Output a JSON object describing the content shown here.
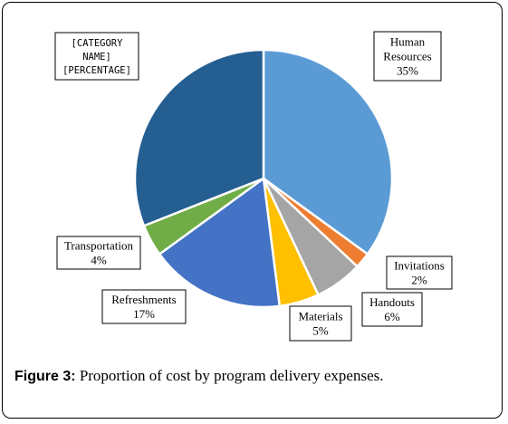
{
  "chart_data": {
    "type": "pie",
    "slices": [
      {
        "label": "Human Resources",
        "pct_text": "35%",
        "value": 35,
        "color": "#5b9bd5"
      },
      {
        "label": "Invitations",
        "pct_text": "2%",
        "value": 2,
        "color": "#ed7d31"
      },
      {
        "label": "Handouts",
        "pct_text": "6%",
        "value": 6,
        "color": "#a5a5a5"
      },
      {
        "label": "Materials",
        "pct_text": "5%",
        "value": 5,
        "color": "#ffc000"
      },
      {
        "label": "Refreshments",
        "pct_text": "17%",
        "value": 17,
        "color": "#4472c4"
      },
      {
        "label": "Transportation",
        "pct_text": "4%",
        "value": 4,
        "color": "#70ad47"
      },
      {
        "label": "[CATEGORY NAME]",
        "pct_text": "[PERCENTAGE]",
        "value": 31,
        "color": "#255e91"
      }
    ],
    "labels_text": {
      "human_resources": [
        "Human",
        "Resources",
        "35%"
      ],
      "invitations": [
        "Invitations",
        "2%"
      ],
      "handouts": [
        "Handouts",
        "6%"
      ],
      "materials": [
        "Materials",
        "5%"
      ],
      "refreshments": [
        "Refreshments",
        "17%"
      ],
      "transportation": [
        "Transportation",
        "4%"
      ],
      "category": [
        "[CATEGORY",
        "NAME]",
        "[PERCENTAGE]"
      ]
    }
  },
  "caption": {
    "lead": "Figure 3:",
    "text": " Proportion of cost by program delivery expenses."
  }
}
